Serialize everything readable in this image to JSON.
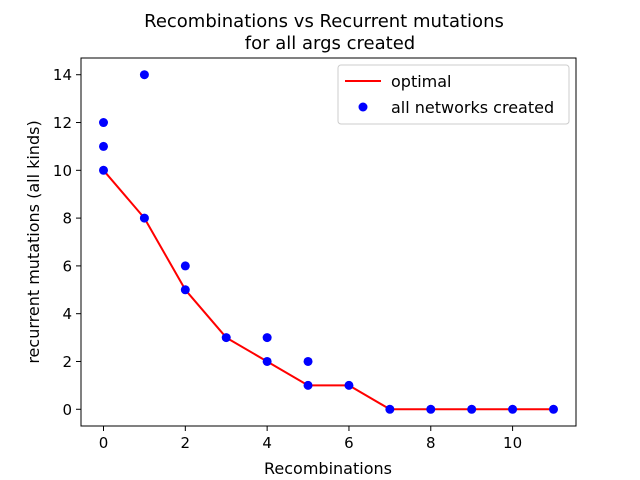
{
  "chart_data": {
    "type": "scatter",
    "title": [
      "Recombinations vs Recurrent mutations",
      "for all args created"
    ],
    "xlabel": "Recombinations",
    "ylabel": "recurrent mutations (all kinds)",
    "xlim": [
      -0.55,
      11.55
    ],
    "ylim": [
      -0.7,
      14.7
    ],
    "xticks": [
      0,
      2,
      4,
      6,
      8,
      10
    ],
    "yticks": [
      0,
      2,
      4,
      6,
      8,
      10,
      12,
      14
    ],
    "grid": false,
    "legend": {
      "placement": "top-right",
      "entries": [
        "optimal",
        "all networks created"
      ]
    },
    "series": [
      {
        "name": "optimal",
        "kind": "line",
        "color": "#ff0000",
        "x": [
          0,
          1,
          2,
          3,
          4,
          5,
          6,
          7,
          8,
          9,
          10,
          11
        ],
        "y": [
          10,
          8,
          5,
          3,
          2,
          1,
          1,
          0,
          0,
          0,
          0,
          0
        ]
      },
      {
        "name": "all networks created",
        "kind": "scatter",
        "color": "#0000ff",
        "points": [
          [
            0,
            10
          ],
          [
            0,
            11
          ],
          [
            0,
            12
          ],
          [
            1,
            8
          ],
          [
            1,
            14
          ],
          [
            2,
            5
          ],
          [
            2,
            6
          ],
          [
            3,
            3
          ],
          [
            4,
            2
          ],
          [
            4,
            3
          ],
          [
            5,
            1
          ],
          [
            5,
            2
          ],
          [
            6,
            1
          ],
          [
            7,
            0
          ],
          [
            8,
            0
          ],
          [
            9,
            0
          ],
          [
            10,
            0
          ],
          [
            11,
            0
          ]
        ]
      }
    ]
  }
}
